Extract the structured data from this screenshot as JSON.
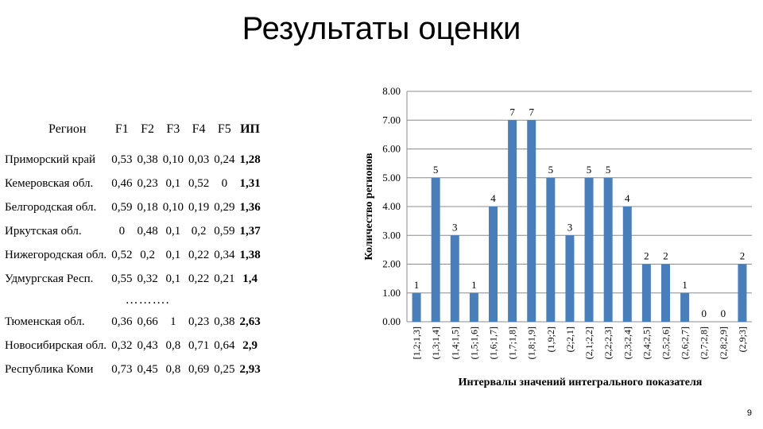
{
  "title": "Результаты оценки",
  "page_number": "9",
  "table": {
    "headers": [
      "Регион",
      "F1",
      "F2",
      "F3",
      "F4",
      "F5",
      "ИП"
    ],
    "rows_top": [
      [
        "Приморский край",
        "0,53",
        "0,38",
        "0,10",
        "0,03",
        "0,24",
        "1,28"
      ],
      [
        "Кемеровская обл.",
        "0,46",
        "0,23",
        "0,1",
        "0,52",
        "0",
        "1,31"
      ],
      [
        "Белгородская обл.",
        "0,59",
        "0,18",
        "0,10",
        "0,19",
        "0,29",
        "1,36"
      ],
      [
        "Иркутская обл.",
        "0",
        "0,48",
        "0,1",
        "0,2",
        "0,59",
        "1,37"
      ],
      [
        "Нижегородская обл.",
        "0,52",
        "0,2",
        "0,1",
        "0,22",
        "0,34",
        "1,38"
      ],
      [
        "Удмургская Респ.",
        "0,55",
        "0,32",
        "0,1",
        "0,22",
        "0,21",
        "1,4"
      ]
    ],
    "ellipsis": "……….",
    "rows_bottom": [
      [
        "Тюменская обл.",
        "0,36",
        "0,66",
        "1",
        "0,23",
        "0,38",
        "2,63"
      ],
      [
        "Новосибирская обл.",
        "0,32",
        "0,43",
        "0,8",
        "0,71",
        "0,64",
        "2,9"
      ],
      [
        "Республика Коми",
        "0,73",
        "0,45",
        "0,8",
        "0,69",
        "0,25",
        "2,93"
      ]
    ]
  },
  "chart_data": {
    "type": "bar",
    "title": "",
    "xlabel": "Интервалы значений интегрального показателя",
    "ylabel": "Количество регионов",
    "ylim": [
      0,
      8
    ],
    "ytick_labels": [
      "0.00",
      "1.00",
      "2.00",
      "3.00",
      "4.00",
      "5.00",
      "6.00",
      "7.00",
      "8.00"
    ],
    "grid": true,
    "bar_color": "#4a7ebb",
    "categories": [
      "[1,2;1,3]",
      "(1,3;1,4]",
      "(1,4;1,5]",
      "(1,5;1,6]",
      "(1,6;1,7]",
      "(1,7;1,8]",
      "(1,8;1,9]",
      "(1,9;2]",
      "(2;2,1]",
      "(2,1;2,2]",
      "(2,2;2,3]",
      "(2,3;2,4]",
      "(2,4;2,5]",
      "(2,5;2,6]",
      "(2,6;2,7]",
      "(2,7;2,8]",
      "(2,8;2,9]",
      "(2,9;3]"
    ],
    "values": [
      1,
      5,
      3,
      1,
      4,
      7,
      7,
      5,
      3,
      5,
      5,
      4,
      2,
      2,
      1,
      0,
      0,
      2
    ],
    "data_labels": [
      "1",
      "5",
      "3",
      "1",
      "4",
      "7",
      "7",
      "5",
      "3",
      "5",
      "5",
      "4",
      "2",
      "2",
      "1",
      "0",
      "0",
      "2"
    ]
  }
}
